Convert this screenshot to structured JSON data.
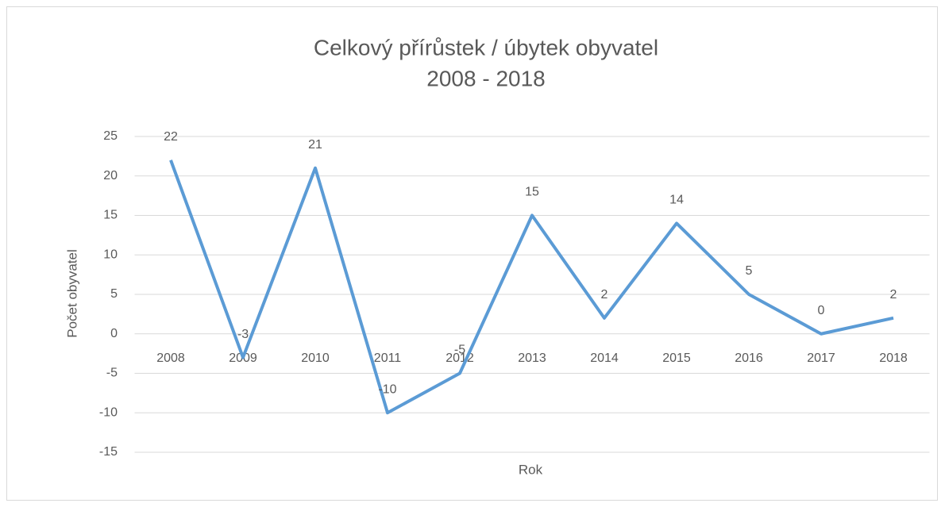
{
  "chart_data": {
    "type": "line",
    "title": [
      "Celkový přírůstek / úbytek obyvatel",
      "2008 - 2018"
    ],
    "x_label": "Rok",
    "y_label": "Počet obyvatel",
    "categories": [
      "2008",
      "2009",
      "2010",
      "2011",
      "2012",
      "2013",
      "2014",
      "2015",
      "2016",
      "2017",
      "2018"
    ],
    "values": [
      22,
      -3,
      21,
      -10,
      -5,
      15,
      2,
      14,
      5,
      0,
      2
    ],
    "color": "#5b9bd5",
    "ylim": [
      -15,
      25
    ],
    "yticks": [
      -15,
      -10,
      -5,
      0,
      5,
      10,
      15,
      20,
      25
    ],
    "grid": true
  }
}
